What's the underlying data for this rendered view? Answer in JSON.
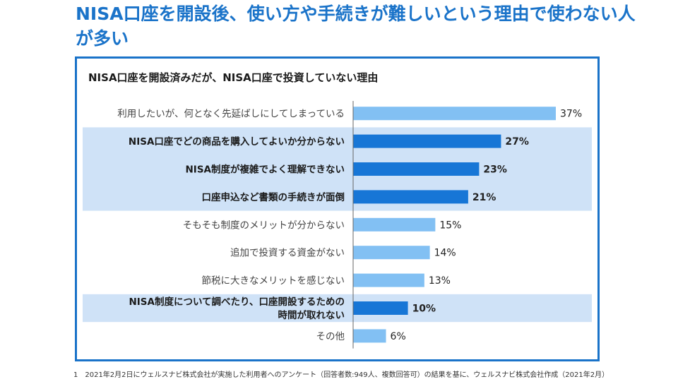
{
  "headline": "NISA口座を開設後、使い方や手続きが難しいという理由で使わない人が多い",
  "colors": {
    "accent": "#1a73c9",
    "bar_emphasis": "#1776d6",
    "bar_normal": "#82c0f3",
    "highlight_band": "#cfe2f7"
  },
  "chart_data": {
    "type": "bar",
    "orientation": "horizontal",
    "title": "NISA口座を開設済みだが、NISA口座で投資していない理由",
    "unit": "%",
    "xlim": [
      0,
      37
    ],
    "categories": [
      "利用したいが、何となく先延ばしにしてしまっている",
      "NISA口座でどの商品を購入してよいか分からない",
      "NISA制度が複雑でよく理解できない",
      "口座申込など書類の手続きが面倒",
      "そもそも制度のメリットが分からない",
      "追加で投資する資金がない",
      "節税に大きなメリットを感じない",
      "NISA制度について調べたり、口座開設するための時間が取れない",
      "その他"
    ],
    "label_lines": [
      [
        "利用したいが、何となく先延ばしにしてしまっている"
      ],
      [
        "NISA口座でどの商品を購入してよいか分からない"
      ],
      [
        "NISA制度が複雑でよく理解できない"
      ],
      [
        "口座申込など書類の手続きが面倒"
      ],
      [
        "そもそも制度のメリットが分からない"
      ],
      [
        "追加で投資する資金がない"
      ],
      [
        "節税に大きなメリットを感じない"
      ],
      [
        "NISA制度について調べたり、口座開設するための",
        "時間が取れない"
      ],
      [
        "その他"
      ]
    ],
    "values": [
      37,
      27,
      23,
      21,
      15,
      14,
      13,
      10,
      6
    ],
    "value_labels": [
      "37%",
      "27%",
      "23%",
      "21%",
      "15%",
      "14%",
      "13%",
      "10%",
      "6%"
    ],
    "emphasized": [
      false,
      true,
      true,
      true,
      false,
      false,
      false,
      true,
      false
    ]
  },
  "footnote": "1　2021年2月2日にウェルスナビ株式会社が実施した利用者へのアンケート（回答者数:949人、複数回答可）の結果を基に、ウェルスナビ株式会社作成（2021年2月）"
}
